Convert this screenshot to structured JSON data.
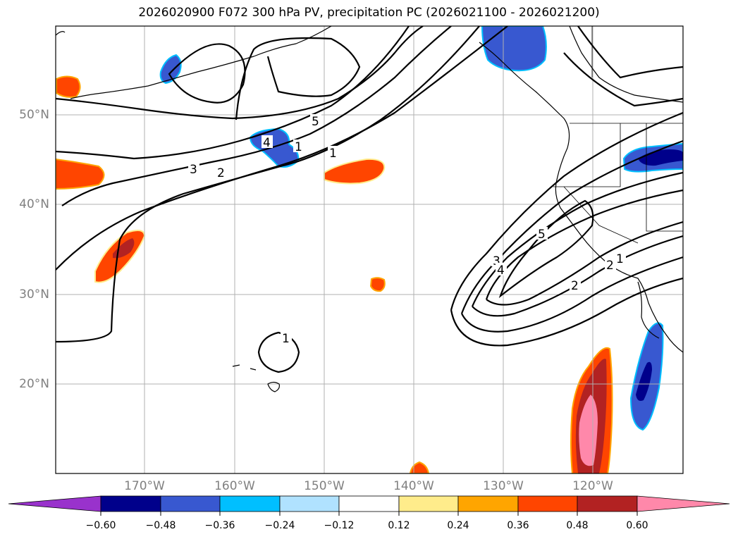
{
  "title": "2026020900 F072 300 hPa PV, precipitation PC (2026021100 - 2026021200)",
  "lat_labels": [
    "50°N",
    "40°N",
    "30°N",
    "20°N"
  ],
  "lon_labels": [
    "170°W",
    "160°W",
    "150°W",
    "140°W",
    "130°W",
    "120°W"
  ],
  "contour_labels": [
    "1",
    "2",
    "3",
    "4",
    "5",
    "1",
    "2",
    "3",
    "4",
    "5",
    "1",
    "2",
    "1"
  ],
  "colorbar": {
    "ticks": [
      "−0.60",
      "−0.48",
      "−0.36",
      "−0.24",
      "−0.12",
      "0.12",
      "0.24",
      "0.36",
      "0.48",
      "0.60"
    ],
    "colors": [
      "#9932cc",
      "#00008b",
      "#3858d0",
      "#00bfff",
      "#b0e2ff",
      "#ffffff",
      "#ffec8b",
      "#ffa500",
      "#ff4500",
      "#b22222",
      "#ff88aa"
    ]
  }
}
